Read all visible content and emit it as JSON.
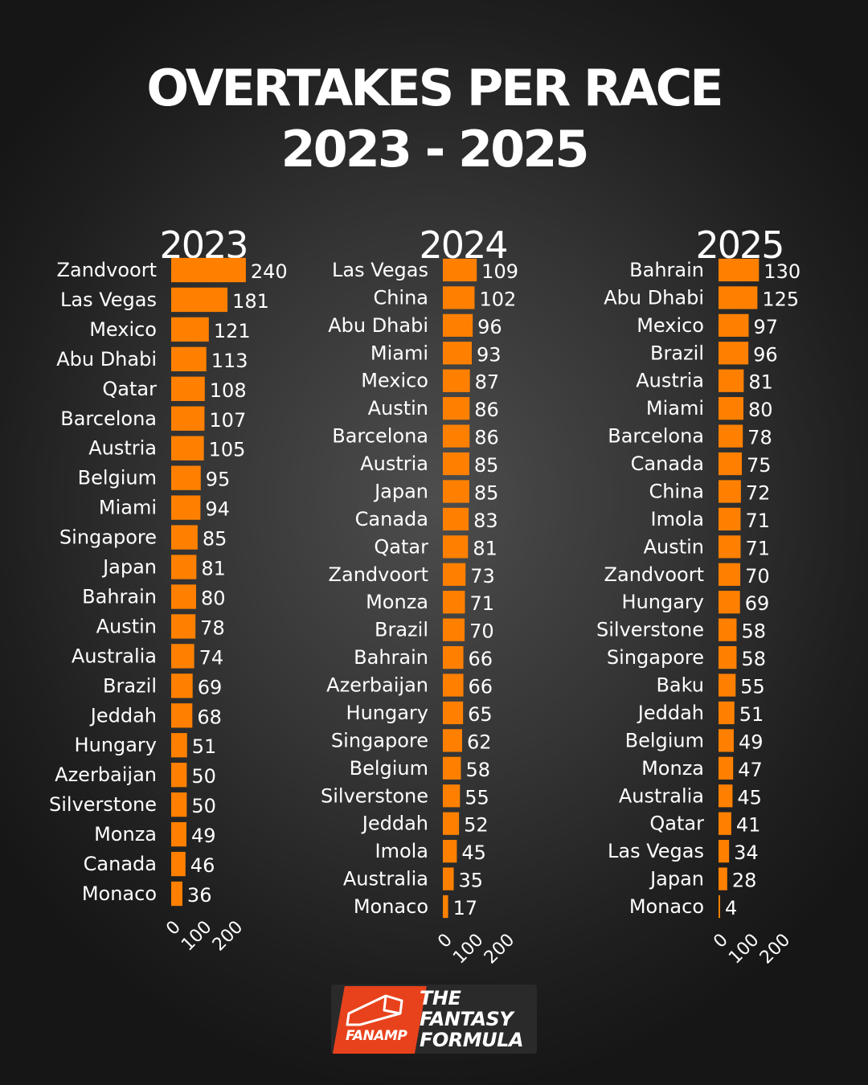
{
  "header": {
    "title_line1": "OVERTAKES PER RACE",
    "title_line2": "2023 - 2025"
  },
  "brand": {
    "badge": "FANAMP",
    "line1": "THE",
    "line2": "FANTASY",
    "line3": "FORMULA"
  },
  "chart_data": [
    {
      "type": "bar",
      "orientation": "horizontal",
      "title": "2023",
      "xlim": [
        0,
        240
      ],
      "xticks": [
        0,
        100,
        200
      ],
      "categories": [
        "Zandvoort",
        "Las Vegas",
        "Mexico",
        "Abu Dhabi",
        "Qatar",
        "Barcelona",
        "Austria",
        "Belgium",
        "Miami",
        "Singapore",
        "Japan",
        "Bahrain",
        "Austin",
        "Australia",
        "Brazil",
        "Jeddah",
        "Hungary",
        "Azerbaijan",
        "Silverstone",
        "Monza",
        "Canada",
        "Monaco"
      ],
      "values": [
        240,
        181,
        121,
        113,
        108,
        107,
        105,
        95,
        94,
        85,
        81,
        80,
        78,
        74,
        69,
        68,
        51,
        50,
        50,
        49,
        46,
        36
      ]
    },
    {
      "type": "bar",
      "orientation": "horizontal",
      "title": "2024",
      "xlim": [
        0,
        240
      ],
      "xticks": [
        0,
        100,
        200
      ],
      "categories": [
        "Las Vegas",
        "China",
        "Abu Dhabi",
        "Miami",
        "Mexico",
        "Austin",
        "Barcelona",
        "Austria",
        "Japan",
        "Canada",
        "Qatar",
        "Zandvoort",
        "Monza",
        "Brazil",
        "Bahrain",
        "Azerbaijan",
        "Hungary",
        "Singapore",
        "Belgium",
        "Silverstone",
        "Jeddah",
        "Imola",
        "Australia",
        "Monaco"
      ],
      "values": [
        109,
        102,
        96,
        93,
        87,
        86,
        86,
        85,
        85,
        83,
        81,
        73,
        71,
        70,
        66,
        66,
        65,
        62,
        58,
        55,
        52,
        45,
        35,
        17
      ]
    },
    {
      "type": "bar",
      "orientation": "horizontal",
      "title": "2025",
      "xlim": [
        0,
        240
      ],
      "xticks": [
        0,
        100,
        200
      ],
      "categories": [
        "Bahrain",
        "Abu Dhabi",
        "Mexico",
        "Brazil",
        "Austria",
        "Miami",
        "Barcelona",
        "Canada",
        "China",
        "Imola",
        "Austin",
        "Zandvoort",
        "Hungary",
        "Silverstone",
        "Singapore",
        "Baku",
        "Jeddah",
        "Belgium",
        "Monza",
        "Australia",
        "Qatar",
        "Las Vegas",
        "Japan",
        "Monaco"
      ],
      "values": [
        130,
        125,
        97,
        96,
        81,
        80,
        78,
        75,
        72,
        71,
        71,
        70,
        69,
        58,
        58,
        55,
        51,
        49,
        47,
        45,
        41,
        34,
        28,
        4
      ]
    }
  ]
}
